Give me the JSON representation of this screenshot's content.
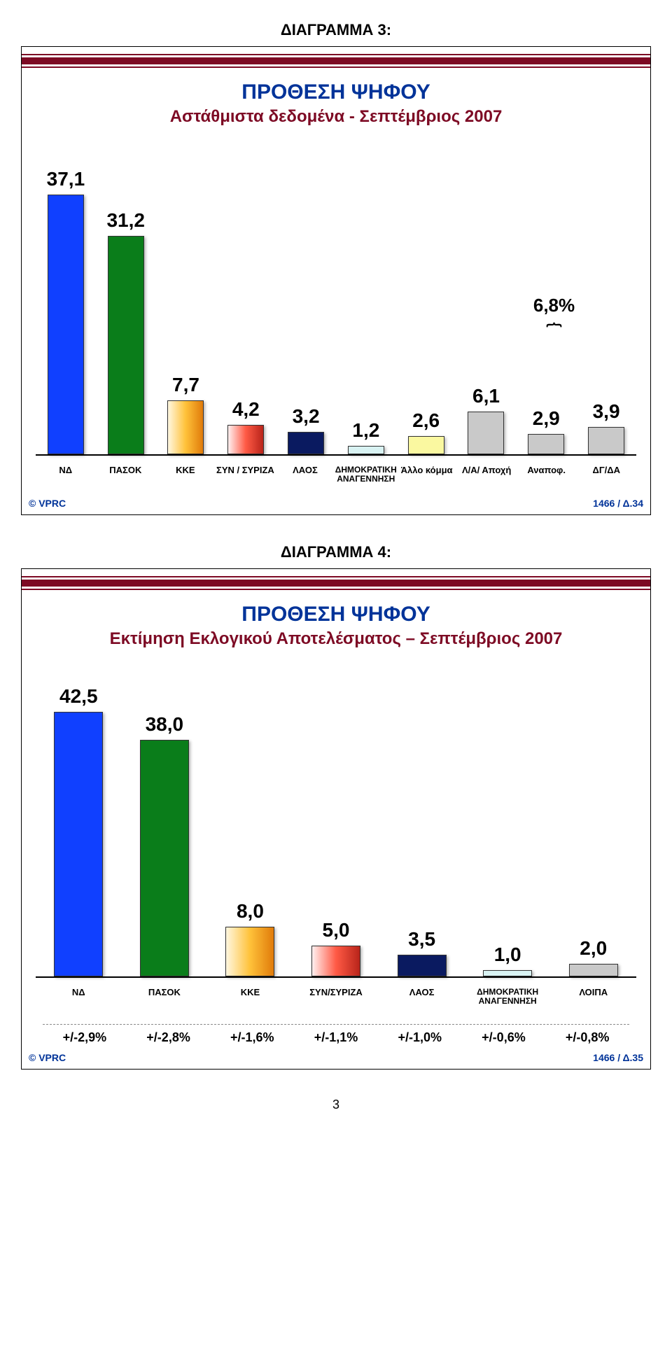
{
  "diagram3": {
    "title": "ΔΙΑΓΡΑΜΜΑ 3:",
    "title_fontsize": 22,
    "heading_line1": "ΠΡΟΘΕΣΗ ΨΗΦΟΥ",
    "heading_line2": "Αστάθμιστα δεδομένα - Σεπτέμβριος 2007",
    "annotation": "6,8%",
    "annotation_over_indices": [
      8,
      9
    ],
    "ymax": 40,
    "categories": [
      "ΝΔ",
      "ΠΑΣΟΚ",
      "ΚΚΕ",
      "ΣΥΝ / ΣΥΡΙΖΑ",
      "ΛΑΟΣ",
      "ΔΗΜΟΚΡΑΤΙΚΗ ΑΝΑΓΕΝΝΗΣΗ",
      "Άλλο κόμμα",
      "Λ/Α/ Αποχή",
      "Αναποφ.",
      "ΔΓ/ΔΑ"
    ],
    "values_text": [
      "37,1",
      "31,2",
      "7,7",
      "4,2",
      "3,2",
      "1,2",
      "2,6",
      "6,1",
      "2,9",
      "3,9"
    ],
    "values_num": [
      37.1,
      31.2,
      7.7,
      4.2,
      3.2,
      1.2,
      2.6,
      6.1,
      2.9,
      3.9
    ],
    "bar_colors": [
      "#1040ff",
      "#0a7d1a",
      "grad-orange",
      "grad-red",
      "#0a1a60",
      "#d8f2f2",
      "#faf8a0",
      "#c9c9c9",
      "#c9c9c9",
      "#c9c9c9"
    ],
    "rule_color": "#7d0a24",
    "footer_left": "© VPRC",
    "footer_right": "1466 / Δ.34"
  },
  "diagram4": {
    "title": "ΔΙΑΓΡΑΜΜΑ 4:",
    "title_fontsize": 22,
    "heading_line1": "ΠΡΟΘΕΣΗ ΨΗΦΟΥ",
    "heading_line2": "Εκτίμηση Εκλογικού Αποτελέσματος – Σεπτέμβριος 2007",
    "ymax": 45,
    "categories": [
      "ΝΔ",
      "ΠΑΣΟΚ",
      "ΚΚΕ",
      "ΣΥΝ/ΣΥΡΙΖΑ",
      "ΛΑΟΣ",
      "ΔΗΜΟΚΡΑΤΙΚΗ ΑΝΑΓΕΝΝΗΣΗ",
      "ΛΟΙΠΑ"
    ],
    "values_text": [
      "42,5",
      "38,0",
      "8,0",
      "5,0",
      "3,5",
      "1,0",
      "2,0"
    ],
    "values_num": [
      42.5,
      38.0,
      8.0,
      5.0,
      3.5,
      1.0,
      2.0
    ],
    "bar_colors": [
      "#1040ff",
      "#0a7d1a",
      "grad-orange",
      "grad-red",
      "#0a1a60",
      "#d8f2f2",
      "#c9c9c9"
    ],
    "errors": [
      "+/-2,9%",
      "+/-2,8%",
      "+/-1,6%",
      "+/-1,1%",
      "+/-1,0%",
      "+/-0,6%",
      "+/-0,8%"
    ],
    "footer_left": "© VPRC",
    "footer_right": "1466 / Δ.35"
  },
  "page_number": "3"
}
